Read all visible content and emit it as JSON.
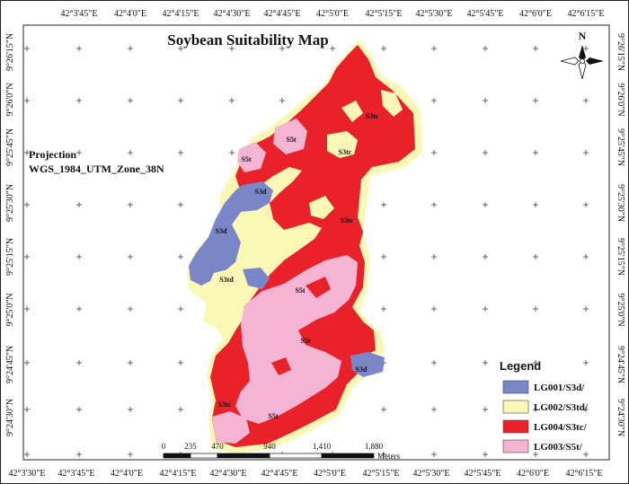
{
  "title": "Soybean Suitability Map",
  "projection": {
    "heading": "Projection",
    "name": "WGS_1984_UTM_Zone_38N"
  },
  "north_arrow": {
    "label": "N",
    "icon": "north-arrow-icon"
  },
  "axes": {
    "top_ticks": [
      "42°3'45\"E",
      "42°4'0\"E",
      "42°4'15\"E",
      "42°4'30\"E",
      "42°4'45\"E",
      "42°5'0\"E",
      "42°5'15\"E",
      "42°5'30\"E",
      "42°5'45\"E",
      "42°6'0\"E",
      "42°6'15\"E"
    ],
    "bottom_ticks": [
      "42°3'30\"E",
      "42°3'45\"E",
      "42°4'0\"E",
      "42°4'15\"E",
      "42°4'30\"E",
      "42°4'45\"E",
      "42°5'0\"E",
      "42°5'15\"E",
      "42°5'30\"E",
      "42°5'45\"E",
      "42°6'0\"E",
      "42°6'15\"E"
    ],
    "left_ticks": [
      "9°26'15\"N",
      "9°26'0\"N",
      "9°25'45\"N",
      "9°25'30\"N",
      "9°25'15\"N",
      "9°25'0\"N",
      "9°24'45\"N",
      "9°24'30\"N"
    ],
    "right_ticks": [
      "9°26'15\"N",
      "9°26'0\"N",
      "9°25'45\"N",
      "9°25'30\"N",
      "9°25'15\"N",
      "9°25'0\"N",
      "9°24'45\"N",
      "9°24'30\"N"
    ]
  },
  "legend": {
    "title": "Legend",
    "items": [
      {
        "label": "LG001/S3d/",
        "color": "#7b86c8"
      },
      {
        "label": "LG002/S3td/",
        "color": "#fbf8b6"
      },
      {
        "label": "LG004/S3tc/",
        "color": "#e8212b"
      },
      {
        "label": "LG003/S5t/",
        "color": "#f4b4d4"
      }
    ]
  },
  "scale_bar": {
    "ticks": [
      "0",
      "235",
      "470",
      "940",
      "1,410",
      "1,880"
    ],
    "unit": "Meters"
  },
  "map_labels": [
    "S3tc",
    "S5t",
    "S3tc",
    "S5t",
    "S3d",
    "S3tc",
    "S3d",
    "S3td",
    "S5t",
    "S5t",
    "S3d",
    "S3tc",
    "S5t"
  ],
  "colors": {
    "S3d": "#7b86c8",
    "S3td": "#fbf8b6",
    "S3tc": "#e8212b",
    "S5t": "#f4b4d4"
  }
}
